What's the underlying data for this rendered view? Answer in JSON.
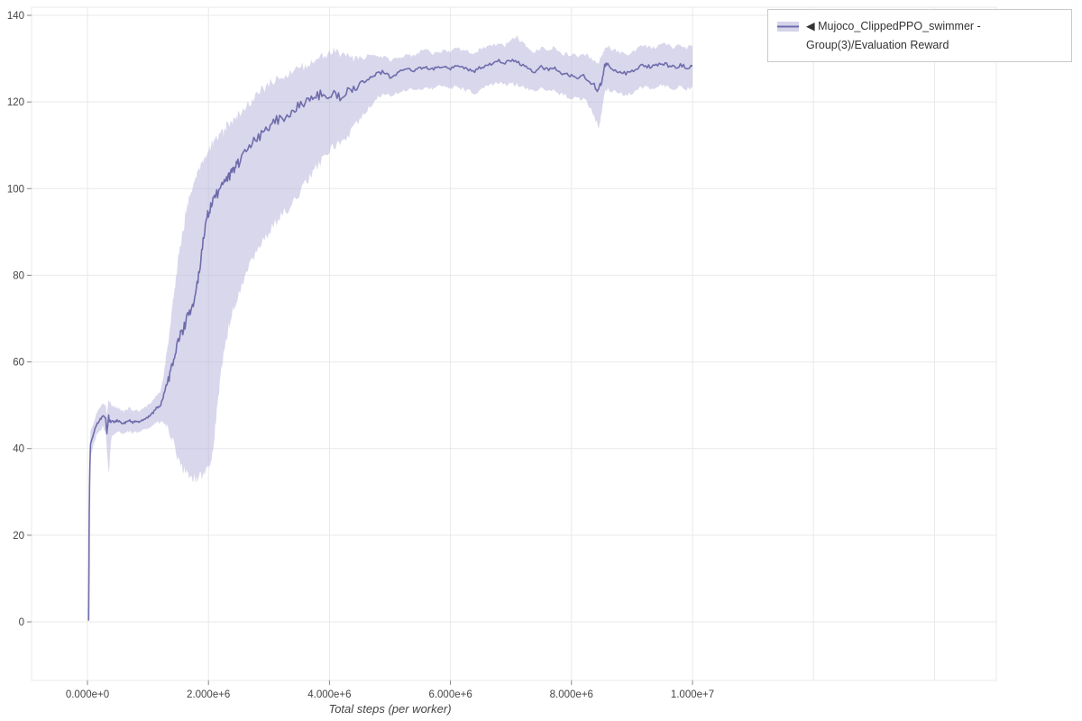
{
  "legend": {
    "label": "◀ Mujoco_ClippedPPO_swimmer - Group(3)/Evaluation Reward"
  },
  "colors": {
    "line": "#6e6cab",
    "band": "#b3b0d9",
    "grid": "#e9e9e9",
    "tick_text": "#444444",
    "axis_tick": "#888888",
    "legend_border": "#c9c9c9"
  },
  "chart_data": {
    "type": "line",
    "title": "",
    "xlabel": "Total steps (per worker)",
    "ylabel": "",
    "ylim": [
      -13,
      142
    ],
    "xlim_steps": [
      -900000,
      15000000
    ],
    "grid": true,
    "legend_position": "top-right-outside",
    "x_ticks": [
      {
        "value": 0,
        "label": "0.000e+0"
      },
      {
        "value": 2000000,
        "label": "2.000e+6"
      },
      {
        "value": 4000000,
        "label": "4.000e+6"
      },
      {
        "value": 6000000,
        "label": "6.000e+6"
      },
      {
        "value": 8000000,
        "label": "8.000e+6"
      },
      {
        "value": 10000000,
        "label": "1.000e+7"
      }
    ],
    "x_grid_e6": [
      0,
      2,
      4,
      6,
      8,
      10,
      12,
      14
    ],
    "y_ticks": [
      0,
      20,
      40,
      60,
      80,
      100,
      120,
      140
    ],
    "series": [
      {
        "name": "Mujoco_ClippedPPO_swimmer - Group(3)/Evaluation Reward",
        "color": "#6e6cab",
        "band_color": "#b3b0d9",
        "x_e6": [
          0.02,
          0.03,
          0.04,
          0.05,
          0.1,
          0.15,
          0.2,
          0.25,
          0.3,
          0.32,
          0.35,
          0.4,
          0.45,
          0.5,
          0.55,
          0.6,
          0.65,
          0.7,
          0.75,
          0.8,
          0.85,
          0.9,
          0.95,
          1.0,
          1.05,
          1.1,
          1.15,
          1.2,
          1.25,
          1.3,
          1.35,
          1.4,
          1.45,
          1.5,
          1.55,
          1.6,
          1.65,
          1.7,
          1.75,
          1.8,
          1.85,
          1.9,
          1.95,
          2.0,
          2.05,
          2.1,
          2.15,
          2.2,
          2.25,
          2.3,
          2.35,
          2.4,
          2.45,
          2.5,
          2.6,
          2.7,
          2.8,
          2.9,
          3.0,
          3.1,
          3.2,
          3.3,
          3.4,
          3.5,
          3.6,
          3.7,
          3.8,
          3.9,
          4.0,
          4.1,
          4.2,
          4.3,
          4.4,
          4.5,
          4.6,
          4.7,
          4.8,
          4.9,
          5.0,
          5.1,
          5.2,
          5.3,
          5.4,
          5.5,
          5.6,
          5.7,
          5.8,
          5.9,
          6.0,
          6.1,
          6.2,
          6.3,
          6.4,
          6.5,
          6.6,
          6.7,
          6.8,
          6.9,
          7.0,
          7.1,
          7.2,
          7.3,
          7.4,
          7.5,
          7.6,
          7.7,
          7.8,
          7.9,
          8.0,
          8.1,
          8.2,
          8.3,
          8.4,
          8.45,
          8.5,
          8.55,
          8.6,
          8.7,
          8.8,
          8.9,
          9.0,
          9.1,
          9.2,
          9.3,
          9.4,
          9.5,
          9.6,
          9.7,
          9.8,
          9.9,
          10.0
        ],
        "mean": [
          0.3,
          26,
          36,
          41,
          43.5,
          45.5,
          46.5,
          47.5,
          47,
          43.5,
          47,
          46.5,
          46,
          46.5,
          46,
          45.8,
          46.2,
          46.5,
          46,
          46.3,
          46,
          46.5,
          46.8,
          47.2,
          47.8,
          48.5,
          49.5,
          49.8,
          51.5,
          54.5,
          56.5,
          59.5,
          62,
          64.5,
          66.5,
          68,
          70.5,
          72,
          73.5,
          76.5,
          81,
          87,
          91.5,
          94.5,
          96.5,
          98,
          99,
          100.5,
          101,
          102,
          103,
          104,
          105,
          106,
          108,
          110,
          111.5,
          113,
          114,
          115.5,
          116.5,
          116,
          118,
          119,
          120,
          121,
          121.5,
          122,
          121.5,
          122,
          121,
          122.5,
          123,
          124,
          125,
          126,
          126.5,
          127,
          125.8,
          126.5,
          127.2,
          127.5,
          127.2,
          127.8,
          128,
          127.5,
          128,
          128.3,
          127.8,
          128.5,
          128,
          127.4,
          127,
          128,
          128.5,
          129,
          129.5,
          129,
          129.8,
          129.4,
          128.4,
          127.5,
          127,
          128,
          127.4,
          128,
          127,
          126.4,
          126,
          125.4,
          126,
          125,
          123.4,
          122.6,
          125,
          128.4,
          128.8,
          127.4,
          127,
          126.5,
          127,
          128,
          128.5,
          128,
          128.4,
          129,
          128.4,
          128,
          128.5,
          128,
          128.3
        ],
        "lo": [
          0,
          24,
          33,
          38,
          41,
          43,
          44,
          45,
          44,
          40,
          34,
          43,
          43.5,
          44,
          43.5,
          43.5,
          44,
          44,
          43.5,
          44,
          43.8,
          44.2,
          44.5,
          44.5,
          45,
          45.5,
          46,
          46,
          46,
          45.5,
          44,
          42,
          40,
          38,
          36.5,
          35,
          34,
          33.5,
          33,
          33,
          33.5,
          34,
          34.5,
          35.5,
          38,
          43,
          50,
          57,
          62,
          66,
          69,
          72,
          74,
          76,
          80,
          83,
          86,
          88,
          90,
          92,
          94,
          95,
          97,
          99,
          101,
          103,
          105,
          107,
          109,
          110,
          111,
          112,
          114,
          116,
          118,
          119.5,
          121,
          122,
          121.5,
          122,
          122.5,
          123,
          122.5,
          123,
          123.5,
          123,
          123.5,
          124,
          123,
          123.5,
          123,
          122.5,
          122,
          123,
          123.5,
          124,
          124.5,
          124,
          124.5,
          124,
          123.5,
          123,
          122.5,
          123,
          122.5,
          123,
          122,
          121.5,
          121,
          120.5,
          121,
          119,
          116,
          114,
          118,
          122,
          123,
          122.5,
          122,
          121.5,
          122,
          123,
          123.5,
          123,
          123.5,
          124,
          123.5,
          123,
          123.5,
          123,
          123.5
        ],
        "hi": [
          0.6,
          28,
          39,
          44,
          46,
          48,
          49.5,
          50.5,
          50,
          48,
          51,
          50,
          49.5,
          49.5,
          49,
          48.5,
          49,
          49.5,
          48.5,
          49,
          48.5,
          49,
          49.5,
          50,
          50.5,
          51.5,
          52.5,
          53,
          56,
          61,
          66,
          72,
          78,
          84,
          88,
          92,
          96,
          99,
          101,
          103.5,
          105,
          106.5,
          107.5,
          108.5,
          110,
          111,
          112,
          113.5,
          113,
          114.5,
          115,
          116,
          116.5,
          117,
          118.5,
          120,
          121.5,
          123,
          124,
          125,
          126.5,
          126,
          127.5,
          128,
          128.5,
          129.5,
          130,
          130.5,
          131,
          132,
          131,
          130.5,
          130,
          130,
          130.5,
          130.5,
          130.5,
          130.5,
          129.5,
          130,
          130.5,
          131,
          130.5,
          131.5,
          132,
          131,
          131.5,
          132,
          131.5,
          132.5,
          132,
          131.5,
          131,
          132.5,
          132.5,
          133,
          133.5,
          133,
          134.5,
          135,
          133.5,
          132.5,
          131.5,
          132.5,
          132,
          132.5,
          131.5,
          131,
          131,
          130.5,
          131,
          130.5,
          129.5,
          129,
          130.5,
          132.5,
          133,
          132,
          131.5,
          131,
          131.5,
          132.5,
          133,
          132.5,
          132.5,
          133.5,
          133,
          132.5,
          133,
          132.5,
          133
        ]
      }
    ]
  }
}
